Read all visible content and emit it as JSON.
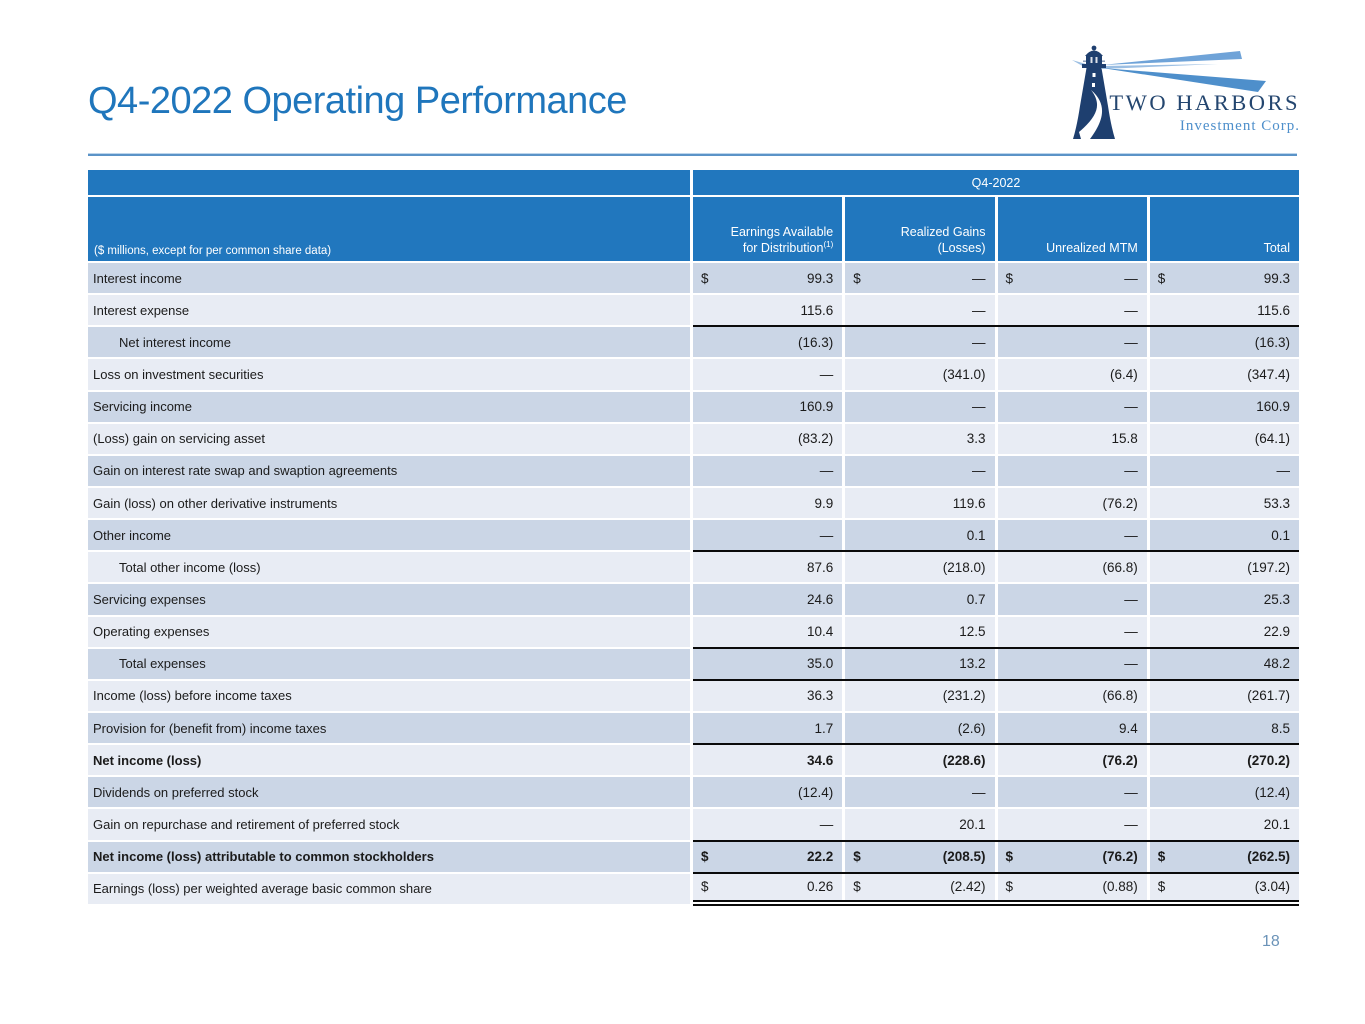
{
  "slide": {
    "title": "Q4-2022 Operating Performance",
    "page_number": "18"
  },
  "logo": {
    "company": "TWO HARBORS",
    "subtitle": "Investment Corp."
  },
  "colors": {
    "header_blue": "#2177BE",
    "row_dark": "#CBD6E6",
    "row_light": "#E8ECF4",
    "title_blue": "#1F76BC",
    "logo_navy": "#1E3F6F",
    "beam_blue": "#4E8FCB",
    "rule_black": "#0a0a0a",
    "page_number_blue": "#6B93B8"
  },
  "table": {
    "period_header": "Q4-2022",
    "row_header_note": "($ millions, except for per common share data)",
    "columns": [
      {
        "lines": [
          "Earnings Available",
          "for Distribution"
        ],
        "sup": "(1)"
      },
      {
        "lines": [
          "Realized Gains",
          "(Losses)"
        ]
      },
      {
        "lines": [
          "Unrealized MTM"
        ]
      },
      {
        "lines": [
          "Total"
        ]
      }
    ],
    "rows": [
      {
        "label": "Interest income",
        "dollar": true,
        "values": [
          "99.3",
          "—",
          "—",
          "99.3"
        ]
      },
      {
        "label": "Interest expense",
        "values": [
          "115.6",
          "—",
          "—",
          "115.6"
        ],
        "rule_below": true
      },
      {
        "label": "Net interest income",
        "indent": true,
        "values": [
          "(16.3)",
          "—",
          "—",
          "(16.3)"
        ]
      },
      {
        "label": "Loss on investment securities",
        "values": [
          "—",
          "(341.0)",
          "(6.4)",
          "(347.4)"
        ]
      },
      {
        "label": "Servicing income",
        "values": [
          "160.9",
          "—",
          "—",
          "160.9"
        ]
      },
      {
        "label": "(Loss) gain on servicing asset",
        "values": [
          "(83.2)",
          "3.3",
          "15.8",
          "(64.1)"
        ]
      },
      {
        "label": "Gain on interest rate swap and swaption agreements",
        "values": [
          "—",
          "—",
          "—",
          "—"
        ]
      },
      {
        "label": "Gain (loss) on other derivative instruments",
        "values": [
          "9.9",
          "119.6",
          "(76.2)",
          "53.3"
        ]
      },
      {
        "label": "Other income",
        "values": [
          "—",
          "0.1",
          "—",
          "0.1"
        ],
        "rule_below": true
      },
      {
        "label": "Total other income (loss)",
        "indent": true,
        "values": [
          "87.6",
          "(218.0)",
          "(66.8)",
          "(197.2)"
        ]
      },
      {
        "label": "Servicing expenses",
        "values": [
          "24.6",
          "0.7",
          "—",
          "25.3"
        ]
      },
      {
        "label": "Operating expenses",
        "values": [
          "10.4",
          "12.5",
          "—",
          "22.9"
        ],
        "rule_below": true
      },
      {
        "label": "Total expenses",
        "indent": true,
        "values": [
          "35.0",
          "13.2",
          "—",
          "48.2"
        ],
        "rule_below": true
      },
      {
        "label": "Income (loss) before income taxes",
        "values": [
          "36.3",
          "(231.2)",
          "(66.8)",
          "(261.7)"
        ]
      },
      {
        "label": "Provision for (benefit from) income taxes",
        "values": [
          "1.7",
          "(2.6)",
          "9.4",
          "8.5"
        ],
        "rule_below": true
      },
      {
        "label": "Net income (loss)",
        "bold": true,
        "values": [
          "34.6",
          "(228.6)",
          "(76.2)",
          "(270.2)"
        ]
      },
      {
        "label": "Dividends on preferred stock",
        "values": [
          "(12.4)",
          "—",
          "—",
          "(12.4)"
        ]
      },
      {
        "label": "Gain on repurchase and retirement of preferred stock",
        "values": [
          "—",
          "20.1",
          "—",
          "20.1"
        ],
        "rule_below": true
      },
      {
        "label": "Net income (loss) attributable to common stockholders",
        "bold": true,
        "dollar": true,
        "values": [
          "22.2",
          "(208.5)",
          "(76.2)",
          "(262.5)"
        ],
        "rule_below": true
      },
      {
        "label": "Earnings (loss) per weighted average basic common share",
        "dollar": true,
        "values": [
          "0.26",
          "(2.42)",
          "(0.88)",
          "(3.04)"
        ],
        "double_rule_below": true
      }
    ]
  }
}
